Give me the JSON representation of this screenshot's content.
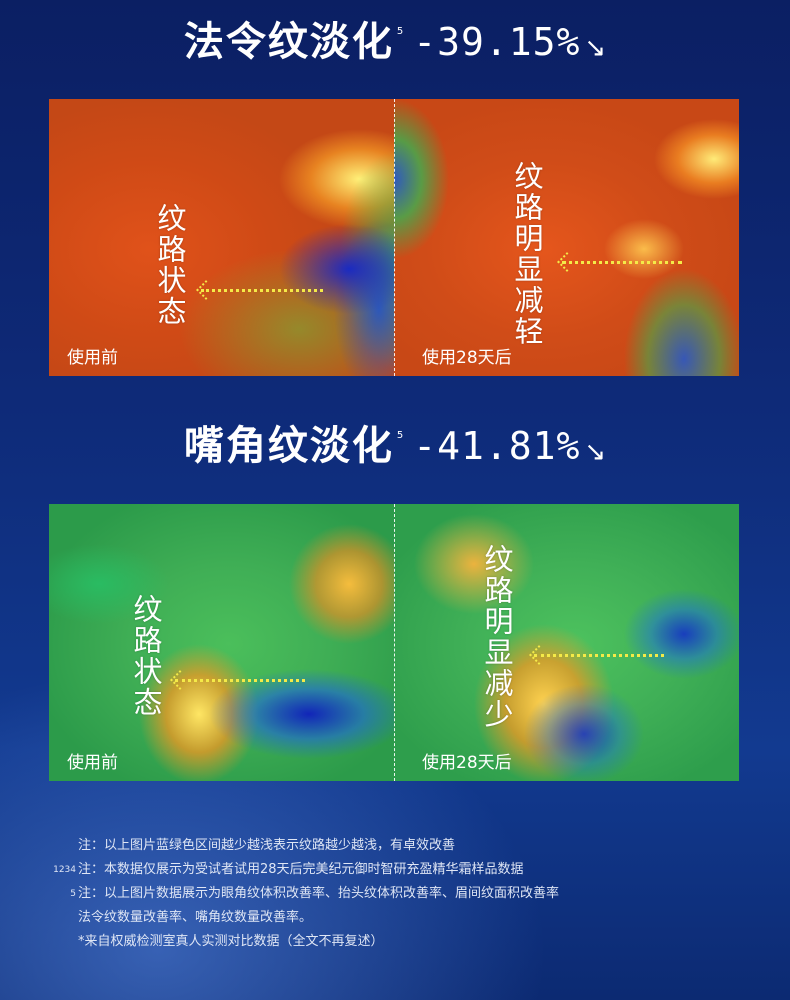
{
  "section1": {
    "title": "法令纹淡化",
    "sup": "5",
    "percent": "-39.15%",
    "arrow": "↘",
    "before_label": "纹路状态",
    "after_label": "纹路明显减轻",
    "before_caption": "使用前",
    "after_caption": "使用28天后"
  },
  "section2": {
    "title": "嘴角纹淡化",
    "sup": "5",
    "percent": "-41.81%",
    "arrow": "↘",
    "before_label": "纹路状态",
    "after_label": "纹路明显减少",
    "before_caption": "使用前",
    "after_caption": "使用28天后"
  },
  "notes": [
    {
      "index": "",
      "text": "注：以上图片蓝绿色区间越少越浅表示纹路越少越浅，有卓效改善"
    },
    {
      "index": "1234",
      "text": "注：本数据仅展示为受试者试用28天后完美纪元御时智研充盈精华霜样品数据"
    },
    {
      "index": "5",
      "text": "注：以上图片数据展示为眼角纹体积改善率、抬头纹体积改善率、眉间纹面积改善率"
    },
    {
      "index": "",
      "text": "法令纹数量改善率、嘴角纹数量改善率。"
    },
    {
      "index": "",
      "text": "*来自权威检测室真人实测对比数据（全文不再复述）"
    }
  ]
}
